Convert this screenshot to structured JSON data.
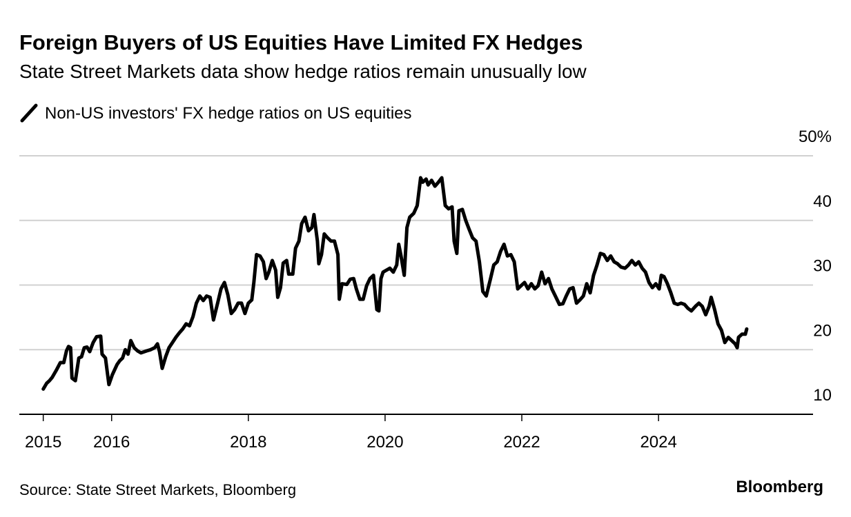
{
  "chart_data": {
    "type": "line",
    "title": "Foreign Buyers of US Equities Have Limited FX Hedges",
    "subtitle": "State Street Markets data show hedge ratios remain unusually low",
    "source": "Source: State Street Markets, Bloomberg",
    "brand": "Bloomberg",
    "x": [
      2015.0,
      2015.05,
      2015.09,
      2015.13,
      2015.19,
      2015.25,
      2015.3,
      2015.34,
      2015.37,
      2015.4,
      2015.42,
      2015.47,
      2015.52,
      2015.56,
      2015.6,
      2015.64,
      2015.68,
      2015.73,
      2015.78,
      2015.84,
      2015.86,
      2015.91,
      2015.96,
      2016.01,
      2016.08,
      2016.12,
      2016.16,
      2016.2,
      2016.24,
      2016.28,
      2016.33,
      2016.38,
      2016.43,
      2016.51,
      2016.57,
      2016.63,
      2016.67,
      2016.7,
      2016.74,
      2016.79,
      2016.84,
      2016.89,
      2016.94,
      2016.99,
      2017.04,
      2017.09,
      2017.14,
      2017.19,
      2017.24,
      2017.29,
      2017.34,
      2017.39,
      2017.44,
      2017.49,
      2017.55,
      2017.6,
      2017.65,
      2017.7,
      2017.75,
      2017.8,
      2017.85,
      2017.9,
      2017.95,
      2018.0,
      2018.05,
      2018.08,
      2018.12,
      2018.17,
      2018.22,
      2018.26,
      2018.3,
      2018.35,
      2018.4,
      2018.43,
      2018.47,
      2018.51,
      2018.56,
      2018.59,
      2018.65,
      2018.69,
      2018.74,
      2018.78,
      2018.83,
      2018.88,
      2018.93,
      2018.96,
      2019.01,
      2019.03,
      2019.07,
      2019.11,
      2019.16,
      2019.21,
      2019.26,
      2019.31,
      2019.33,
      2019.37,
      2019.44,
      2019.49,
      2019.54,
      2019.58,
      2019.63,
      2019.68,
      2019.73,
      2019.78,
      2019.83,
      2019.88,
      2019.91,
      2019.94,
      2019.97,
      2020.02,
      2020.07,
      2020.12,
      2020.17,
      2020.2,
      2020.23,
      2020.28,
      2020.32,
      2020.36,
      2020.42,
      2020.47,
      2020.52,
      2020.55,
      2020.6,
      2020.63,
      2020.68,
      2020.73,
      2020.78,
      2020.83,
      2020.88,
      2020.93,
      2020.98,
      2021.01,
      2021.05,
      2021.08,
      2021.13,
      2021.18,
      2021.23,
      2021.28,
      2021.33,
      2021.38,
      2021.43,
      2021.48,
      2021.54,
      2021.59,
      2021.64,
      2021.69,
      2021.74,
      2021.79,
      2021.84,
      2021.89,
      2021.94,
      2021.99,
      2022.04,
      2022.09,
      2022.14,
      2022.19,
      2022.24,
      2022.29,
      2022.34,
      2022.39,
      2022.44,
      2022.49,
      2022.55,
      2022.6,
      2022.65,
      2022.7,
      2022.75,
      2022.8,
      2022.85,
      2022.9,
      2022.95,
      2023.0,
      2023.05,
      2023.1,
      2023.15,
      2023.2,
      2023.25,
      2023.3,
      2023.35,
      2023.4,
      2023.45,
      2023.51,
      2023.56,
      2023.61,
      2023.66,
      2023.71,
      2023.76,
      2023.81,
      2023.86,
      2023.91,
      2023.96,
      2024.01,
      2024.04,
      2024.08,
      2024.13,
      2024.18,
      2024.23,
      2024.28,
      2024.33,
      2024.38,
      2024.43,
      2024.48,
      2024.54,
      2024.59,
      2024.64,
      2024.69,
      2024.74,
      2024.77,
      2024.82,
      2024.87,
      2024.92,
      2024.97,
      2025.02,
      2025.07,
      2025.12,
      2025.15,
      2025.17,
      2025.22,
      2025.27,
      2025.29
    ],
    "series": [
      {
        "name": "Non-US investors' FX hedge ratios on US equities",
        "color": "#000000",
        "values": [
          13.9,
          14.8,
          15.2,
          15.7,
          16.8,
          18.0,
          18.0,
          19.8,
          20.5,
          20.3,
          15.6,
          15.2,
          18.7,
          18.9,
          20.3,
          20.4,
          19.7,
          21.1,
          22.0,
          22.1,
          19.3,
          18.7,
          14.6,
          16.1,
          17.7,
          18.3,
          18.7,
          20.0,
          19.3,
          21.4,
          20.3,
          19.8,
          19.5,
          19.8,
          20.0,
          20.3,
          20.9,
          19.7,
          17.1,
          18.9,
          20.3,
          21.1,
          21.9,
          22.6,
          23.2,
          24.0,
          23.7,
          25.1,
          27.2,
          28.3,
          27.6,
          28.3,
          28.1,
          24.6,
          27.2,
          29.4,
          30.4,
          28.5,
          25.6,
          26.2,
          27.2,
          27.2,
          25.6,
          27.2,
          27.7,
          30.4,
          34.7,
          34.5,
          33.6,
          31.0,
          32.0,
          33.8,
          32.3,
          28.1,
          29.6,
          33.4,
          33.8,
          31.7,
          31.7,
          35.7,
          36.8,
          39.5,
          40.5,
          38.4,
          38.9,
          40.9,
          36.8,
          33.3,
          34.7,
          37.9,
          37.3,
          36.8,
          36.8,
          34.7,
          27.8,
          30.2,
          30.1,
          30.9,
          31.0,
          29.4,
          27.8,
          27.8,
          29.9,
          31.0,
          31.5,
          26.2,
          26.0,
          31.0,
          32.0,
          32.3,
          32.6,
          32.0,
          33.1,
          36.3,
          34.7,
          31.5,
          38.9,
          40.5,
          41.1,
          42.3,
          46.6,
          45.9,
          46.4,
          45.5,
          46.2,
          45.3,
          45.9,
          46.6,
          42.3,
          41.8,
          42.1,
          36.8,
          34.9,
          41.5,
          41.7,
          40.0,
          38.6,
          37.3,
          36.8,
          33.6,
          29.0,
          28.3,
          30.9,
          33.1,
          33.6,
          35.2,
          36.3,
          34.5,
          34.7,
          33.6,
          29.4,
          29.9,
          30.4,
          29.4,
          30.2,
          29.4,
          29.9,
          32.0,
          30.2,
          31.0,
          29.4,
          28.3,
          27.0,
          27.1,
          28.3,
          29.4,
          29.6,
          27.2,
          27.7,
          28.3,
          30.2,
          28.8,
          31.5,
          33.1,
          34.9,
          34.7,
          33.8,
          34.5,
          33.6,
          33.3,
          32.8,
          32.6,
          33.1,
          33.8,
          33.1,
          33.6,
          32.6,
          32.0,
          30.4,
          29.6,
          30.2,
          29.4,
          31.5,
          31.3,
          30.2,
          28.8,
          27.2,
          27.0,
          27.2,
          27.0,
          26.4,
          26.0,
          26.7,
          27.2,
          26.7,
          25.4,
          26.7,
          28.1,
          26.2,
          24.0,
          23.0,
          21.1,
          21.9,
          21.4,
          20.9,
          20.3,
          21.9,
          22.4,
          22.4,
          23.2
        ]
      }
    ],
    "xlim": [
      2014.65,
      2026.26
    ],
    "xticks": [
      2015,
      2016,
      2018,
      2020,
      2022,
      2024
    ],
    "ylim": [
      10,
      50
    ],
    "yticks": [
      10,
      20,
      30,
      40,
      {
        "value": 50,
        "label": "50%"
      }
    ],
    "grid": true
  }
}
